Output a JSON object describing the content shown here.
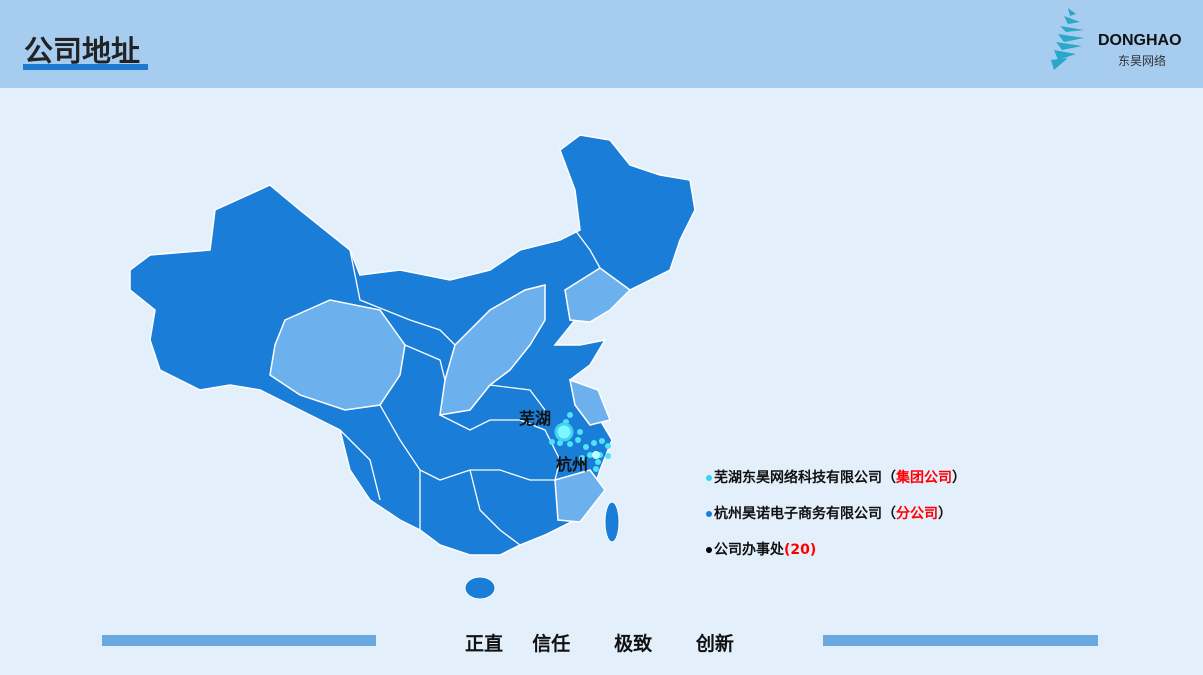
{
  "header": {
    "title": "公司地址"
  },
  "logo": {
    "text_en": "DONGHAO",
    "text_cn": "东昊网络"
  },
  "map": {
    "labels": {
      "wuhu": "芜湖",
      "hangzhou": "杭州"
    },
    "colors": {
      "province_dark": "#1a7ed9",
      "province_light": "#6cb0ee",
      "marker": "#4fe3f7"
    }
  },
  "legend": {
    "items": [
      {
        "name": "芜湖东昊网络科技有限公司",
        "tag": "（集团公司）",
        "tag_inner": "集团公司",
        "dot_color": "#35d6f2"
      },
      {
        "name": "杭州昊诺电子商务有限公司",
        "tag_inner": "分公司",
        "dot_color": "#1a7ed9"
      },
      {
        "name": "公司办事处",
        "count": "(20)",
        "dot_color": "#000000"
      }
    ]
  },
  "footer": {
    "motto": "正直  信任   极致   创新"
  }
}
